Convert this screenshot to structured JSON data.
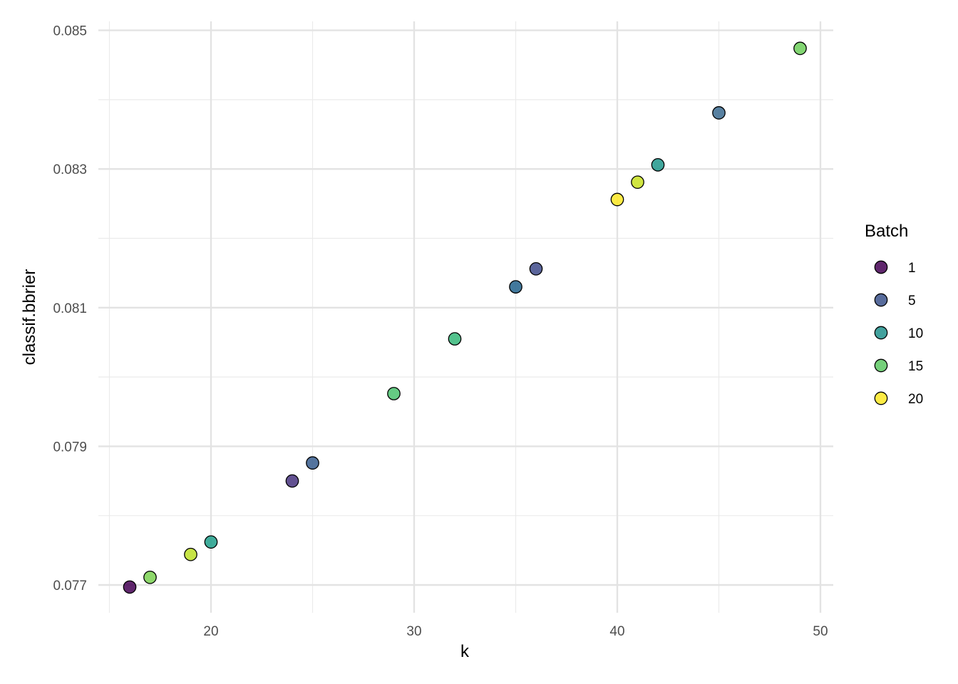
{
  "chart_data": {
    "type": "scatter",
    "xlabel": "k",
    "ylabel": "classif.bbrier",
    "xlim": [
      15,
      50
    ],
    "ylim": [
      0.0768,
      0.0851
    ],
    "x_ticks": [
      20,
      30,
      40,
      50
    ],
    "x_tick_labels": [
      "20",
      "30",
      "40",
      "50"
    ],
    "x_minor_ticks": [
      15,
      25,
      35,
      45
    ],
    "y_ticks": [
      0.077,
      0.079,
      0.081,
      0.083,
      0.085
    ],
    "y_tick_labels": [
      "0.077",
      "0.079",
      "0.081",
      "0.083",
      "0.085"
    ],
    "y_minor_ticks": [
      0.078,
      0.08,
      0.082,
      0.084
    ],
    "grid": true,
    "legend": {
      "title": "Batch",
      "position": "right",
      "entries": [
        {
          "label": "1",
          "color": "#440154"
        },
        {
          "label": "5",
          "color": "#3B528B"
        },
        {
          "label": "10",
          "color": "#21908C"
        },
        {
          "label": "15",
          "color": "#5DC863"
        },
        {
          "label": "20",
          "color": "#FDE725"
        }
      ]
    },
    "points": [
      {
        "x": 16,
        "y": 0.07697,
        "batch": 1,
        "color": "#440154"
      },
      {
        "x": 17,
        "y": 0.07711,
        "batch": 18,
        "color": "#7AD151"
      },
      {
        "x": 19,
        "y": 0.07744,
        "batch": 20,
        "color": "#BDDF26"
      },
      {
        "x": 20,
        "y": 0.07762,
        "batch": 12,
        "color": "#1F9E89"
      },
      {
        "x": 24,
        "y": 0.0785,
        "batch": 3,
        "color": "#46337E"
      },
      {
        "x": 25,
        "y": 0.07876,
        "batch": 7,
        "color": "#365C8D"
      },
      {
        "x": 29,
        "y": 0.07976,
        "batch": 14,
        "color": "#4AC16D"
      },
      {
        "x": 32,
        "y": 0.08055,
        "batch": 13,
        "color": "#35B779"
      },
      {
        "x": 35,
        "y": 0.0813,
        "batch": 8,
        "color": "#21618C"
      },
      {
        "x": 36,
        "y": 0.08156,
        "batch": 4,
        "color": "#3E4A89"
      },
      {
        "x": 40,
        "y": 0.08256,
        "batch": 21,
        "color": "#FDE725"
      },
      {
        "x": 41,
        "y": 0.08281,
        "batch": 19,
        "color": "#C8E020"
      },
      {
        "x": 42,
        "y": 0.08306,
        "batch": 11,
        "color": "#1F968B"
      },
      {
        "x": 45,
        "y": 0.08381,
        "batch": 6,
        "color": "#3B6B91"
      },
      {
        "x": 49,
        "y": 0.08474,
        "batch": 16,
        "color": "#6CCE59"
      }
    ]
  }
}
